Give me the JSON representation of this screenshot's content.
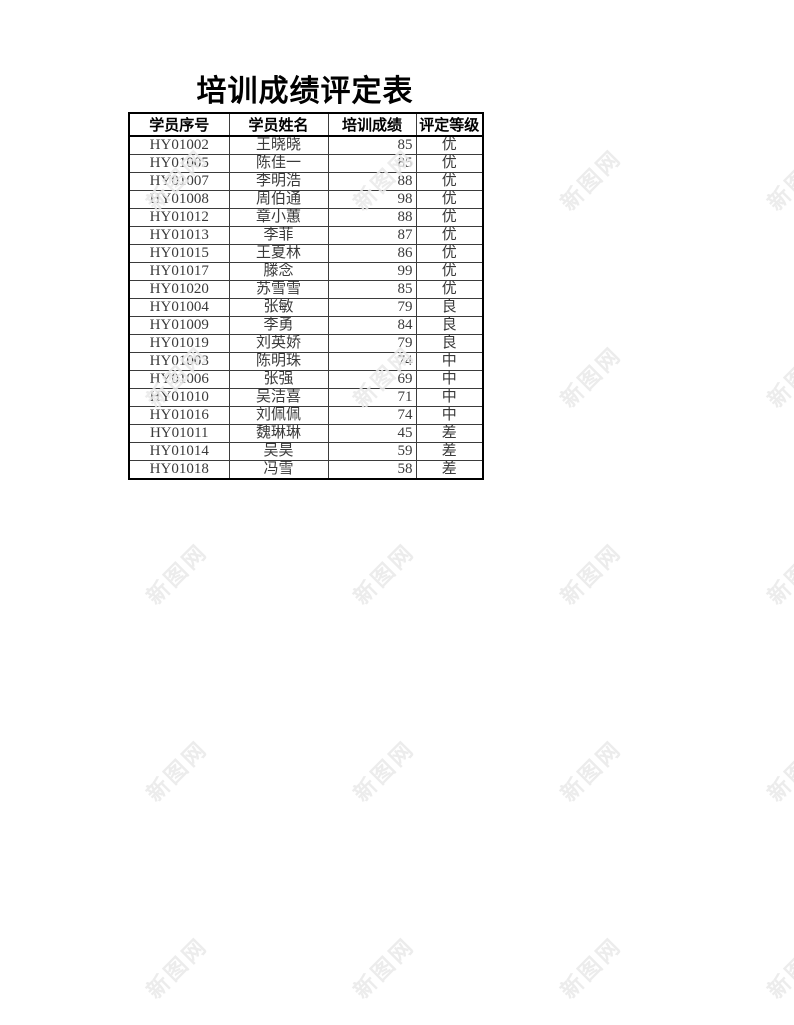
{
  "title": "培训成绩评定表",
  "watermark": {
    "text": "新图网"
  },
  "colors": {
    "outer_border": "#000000",
    "grid_line": "#3b3b3b",
    "body_text": "#3a3a3a",
    "header_text": "#000000",
    "watermark": "#e9e9e9",
    "background": "#ffffff"
  },
  "table": {
    "headers": [
      "学员序号",
      "学员姓名",
      "培训成绩",
      "评定等级"
    ],
    "rows": [
      {
        "id": "HY01002",
        "name": "王晓晓",
        "score": 85,
        "grade": "优"
      },
      {
        "id": "HY01005",
        "name": "陈佳一",
        "score": 85,
        "grade": "优"
      },
      {
        "id": "HY01007",
        "name": "李明浩",
        "score": 88,
        "grade": "优"
      },
      {
        "id": "HY01008",
        "name": "周伯通",
        "score": 98,
        "grade": "优"
      },
      {
        "id": "HY01012",
        "name": "章小蕙",
        "score": 88,
        "grade": "优"
      },
      {
        "id": "HY01013",
        "name": "李菲",
        "score": 87,
        "grade": "优"
      },
      {
        "id": "HY01015",
        "name": "王夏林",
        "score": 86,
        "grade": "优"
      },
      {
        "id": "HY01017",
        "name": "滕念",
        "score": 99,
        "grade": "优"
      },
      {
        "id": "HY01020",
        "name": "苏雪雪",
        "score": 85,
        "grade": "优"
      },
      {
        "id": "HY01004",
        "name": "张敏",
        "score": 79,
        "grade": "良"
      },
      {
        "id": "HY01009",
        "name": "李勇",
        "score": 84,
        "grade": "良"
      },
      {
        "id": "HY01019",
        "name": "刘英娇",
        "score": 79,
        "grade": "良"
      },
      {
        "id": "HY01003",
        "name": "陈明珠",
        "score": 74,
        "grade": "中"
      },
      {
        "id": "HY01006",
        "name": "张强",
        "score": 69,
        "grade": "中"
      },
      {
        "id": "HY01010",
        "name": "吴洁喜",
        "score": 71,
        "grade": "中"
      },
      {
        "id": "HY01016",
        "name": "刘佩佩",
        "score": 74,
        "grade": "中"
      },
      {
        "id": "HY01011",
        "name": "魏琳琳",
        "score": 45,
        "grade": "差"
      },
      {
        "id": "HY01014",
        "name": "吴昊",
        "score": 59,
        "grade": "差"
      },
      {
        "id": "HY01018",
        "name": "冯雪",
        "score": 58,
        "grade": "差"
      }
    ]
  }
}
